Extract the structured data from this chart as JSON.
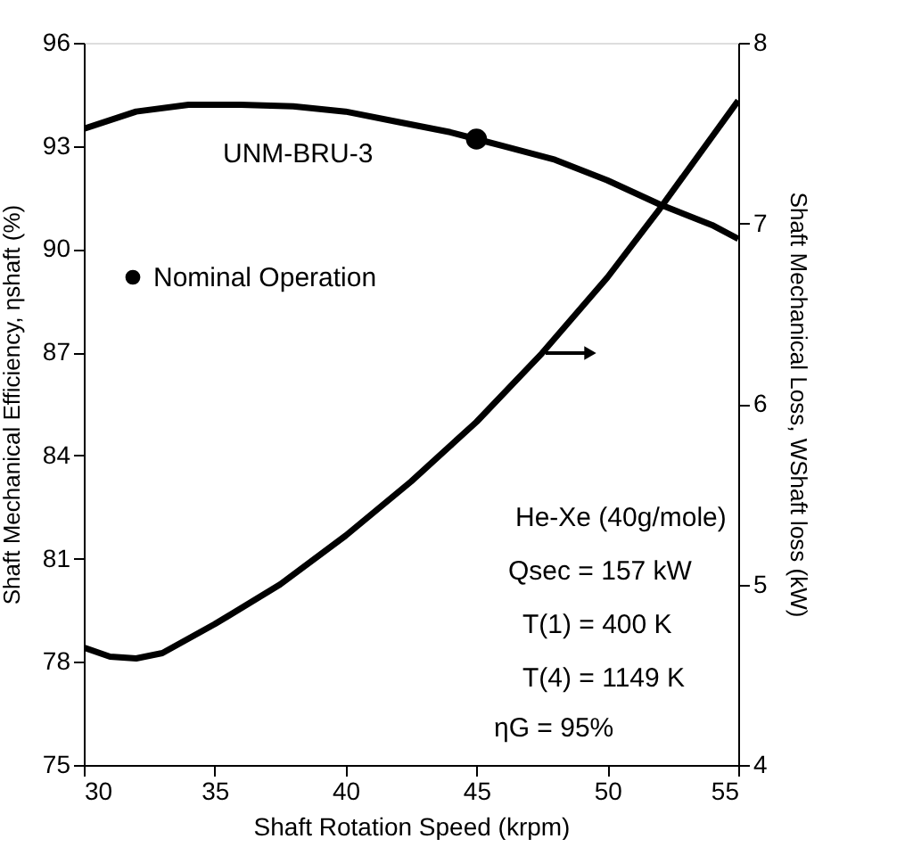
{
  "chart_data": {
    "type": "line",
    "xlabel": "Shaft Rotation Speed (krpm)",
    "ylabel": "Shaft Mechanical Efficiency,  ηshaft (%)",
    "y2label": "Shaft Mechanical Loss, WShaft loss (kW)",
    "xlim": [
      30,
      55
    ],
    "xticks": [
      30,
      35,
      40,
      45,
      50,
      55
    ],
    "ylim": [
      75,
      96
    ],
    "yticks": [
      75,
      78,
      81,
      84,
      87,
      90,
      93,
      96
    ],
    "y2lim": [
      4,
      8
    ],
    "y2ticks": [
      4,
      5,
      6,
      7,
      8
    ],
    "grid": false,
    "legend": "top left",
    "line_style": "solid",
    "series": [
      {
        "color": "#000000",
        "x": [
          30,
          32,
          34,
          36,
          38,
          40,
          42,
          44,
          45,
          46,
          48,
          50,
          52,
          54,
          55
        ],
        "values": [
          93.5,
          94.0,
          94.2,
          94.2,
          94.15,
          94.0,
          93.7,
          93.4,
          93.2,
          93.0,
          92.6,
          92.0,
          91.3,
          90.7,
          90.3
        ]
      },
      {
        "type": "line",
        "axis": "y2",
        "color": "#000000",
        "x": [
          30,
          31,
          32,
          33,
          35,
          37.5,
          40,
          42.5,
          45,
          47.5,
          50,
          52,
          55
        ],
        "values": [
          4.65,
          4.6,
          4.59,
          4.62,
          4.78,
          5.0,
          5.27,
          5.57,
          5.9,
          6.28,
          6.7,
          7.08,
          7.68
        ]
      },
      {
        "type": "scatter",
        "name": "Nominal Operation",
        "marker": "circle",
        "color": "#000000",
        "x": [
          45
        ],
        "values": [
          93.2
        ]
      }
    ],
    "annotations": [
      "UNM-BRU-3",
      "He-Xe (40g/mole)",
      "Qsec = 157 kW",
      "T(1) = 400 K",
      "T(4) = 1149 K",
      "ηG = 95%"
    ]
  }
}
